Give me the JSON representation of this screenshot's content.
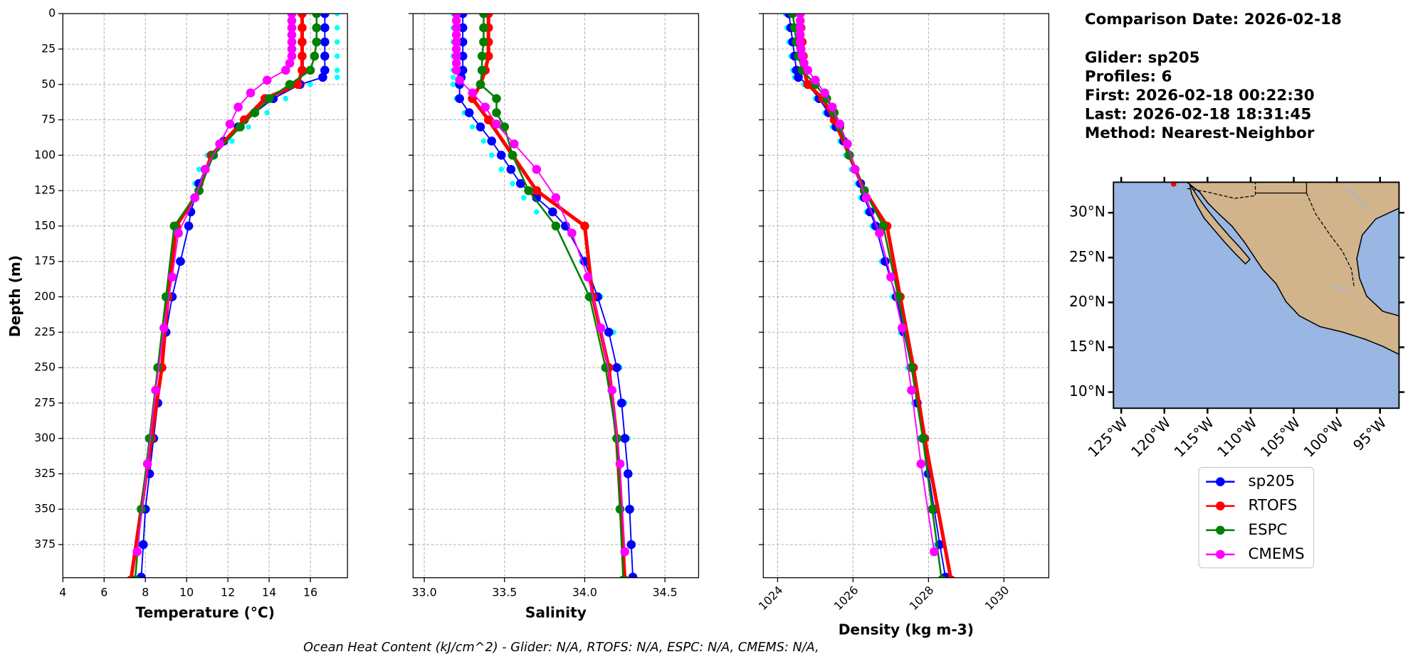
{
  "chart_data": [
    {
      "type": "profile",
      "xlabel": "Temperature (°C)",
      "ylabel": "Depth (m)",
      "xlim": [
        4,
        17.8
      ],
      "xticks": [
        4,
        6,
        8,
        10,
        12,
        14,
        16
      ],
      "ylim": [
        0,
        398.4
      ],
      "y_inverted": true,
      "yticks": [
        0,
        25,
        50,
        75,
        100,
        125,
        150,
        175,
        200,
        225,
        250,
        275,
        300,
        325,
        350,
        375
      ],
      "show_ytick_labels": true,
      "grid": true,
      "series": [
        {
          "color": "#00ffff",
          "linewidth": 0,
          "markersize": 3,
          "y": [
            0,
            10,
            20,
            30,
            40,
            45,
            50,
            60,
            70,
            80,
            90,
            100,
            110,
            120,
            130,
            140,
            150,
            175,
            200,
            225,
            250,
            275,
            300,
            325,
            350,
            375,
            398
          ],
          "x": [
            17.3,
            17.3,
            17.3,
            17.3,
            17.3,
            17.3,
            16.0,
            14.8,
            13.9,
            13.0,
            12.2,
            11.0,
            10.6,
            10.4,
            10.3,
            10.1,
            10.0,
            9.6,
            9.2,
            8.9,
            8.7,
            8.5,
            8.3,
            8.1,
            7.9,
            7.8,
            7.7
          ]
        },
        {
          "name": "sp205",
          "color": "#0000ff",
          "linewidth": 1.5,
          "markersize": 5,
          "y": [
            0,
            10,
            20,
            30,
            40,
            45,
            50,
            60,
            70,
            80,
            90,
            100,
            110,
            120,
            130,
            140,
            150,
            175,
            200,
            225,
            250,
            275,
            300,
            325,
            350,
            375,
            398
          ],
          "x": [
            16.7,
            16.7,
            16.7,
            16.7,
            16.7,
            16.6,
            15.5,
            14.2,
            13.3,
            12.5,
            11.8,
            11.2,
            10.9,
            10.6,
            10.4,
            10.2,
            10.1,
            9.7,
            9.3,
            9.0,
            8.8,
            8.6,
            8.4,
            8.2,
            8.0,
            7.9,
            7.8
          ]
        },
        {
          "name": "RTOFS",
          "color": "#ff0000",
          "linewidth": 4,
          "markersize": 5,
          "y": [
            0,
            10,
            20,
            30,
            40,
            50,
            60,
            75,
            100,
            125,
            150,
            200,
            250,
            300,
            400
          ],
          "x": [
            15.6,
            15.6,
            15.6,
            15.6,
            15.6,
            15.4,
            13.8,
            12.8,
            11.2,
            10.6,
            9.5,
            9.1,
            8.8,
            8.3,
            7.3
          ]
        },
        {
          "name": "ESPC",
          "color": "#008000",
          "linewidth": 2,
          "markersize": 5,
          "y": [
            0,
            10,
            20,
            30,
            40,
            50,
            60,
            70,
            80,
            100,
            125,
            150,
            200,
            250,
            300,
            350,
            400
          ],
          "x": [
            16.3,
            16.3,
            16.3,
            16.2,
            16.0,
            15.0,
            14.0,
            13.3,
            12.6,
            11.3,
            10.6,
            9.4,
            9.0,
            8.6,
            8.2,
            7.8,
            7.5
          ]
        },
        {
          "name": "CMEMS",
          "color": "#ff00ff",
          "linewidth": 1.5,
          "markersize": 5,
          "y": [
            0,
            5,
            10,
            15,
            20,
            25,
            30,
            35,
            40,
            47,
            56,
            66,
            78,
            92,
            110,
            130,
            155,
            186,
            222,
            266,
            318,
            380
          ],
          "x": [
            15.1,
            15.1,
            15.1,
            15.1,
            15.1,
            15.1,
            15.1,
            15.0,
            14.8,
            13.9,
            13.1,
            12.5,
            12.1,
            11.6,
            10.9,
            10.4,
            9.6,
            9.3,
            8.9,
            8.5,
            8.1,
            7.6
          ]
        }
      ]
    },
    {
      "type": "profile",
      "xlabel": "Salinity",
      "xlim": [
        32.93,
        34.71
      ],
      "xticks": [
        {
          "value": 33,
          "label": "33.0"
        },
        33.5,
        {
          "value": 34,
          "label": "34.0"
        },
        34.5
      ],
      "ylim": [
        0,
        398.4
      ],
      "y_inverted": true,
      "yticks": [
        0,
        25,
        50,
        75,
        100,
        125,
        150,
        175,
        200,
        225,
        250,
        275,
        300,
        325,
        350,
        375
      ],
      "show_ytick_labels": false,
      "grid": true,
      "series": [
        {
          "color": "#00ffff",
          "linewidth": 0,
          "markersize": 3,
          "y": [
            0,
            10,
            20,
            30,
            40,
            45,
            50,
            60,
            70,
            80,
            90,
            100,
            110,
            120,
            130,
            140,
            150,
            175,
            200,
            225,
            250,
            275,
            300,
            325,
            350,
            375,
            398
          ],
          "x": [
            33.18,
            33.18,
            33.18,
            33.18,
            33.18,
            33.18,
            33.18,
            33.2,
            33.25,
            33.3,
            33.37,
            33.42,
            33.48,
            33.55,
            33.62,
            33.7,
            33.82,
            33.98,
            34.1,
            34.18,
            34.22,
            34.25,
            34.27,
            34.28,
            34.29,
            34.3,
            34.31
          ]
        },
        {
          "color": "#0000ff",
          "linewidth": 1.5,
          "markersize": 5,
          "y": [
            0,
            10,
            20,
            30,
            40,
            45,
            50,
            60,
            70,
            80,
            90,
            100,
            110,
            120,
            130,
            140,
            150,
            175,
            200,
            225,
            250,
            275,
            300,
            325,
            350,
            375,
            398
          ],
          "x": [
            33.24,
            33.24,
            33.24,
            33.24,
            33.24,
            33.23,
            33.22,
            33.22,
            33.28,
            33.35,
            33.42,
            33.48,
            33.54,
            33.6,
            33.7,
            33.8,
            33.88,
            34.0,
            34.08,
            34.15,
            34.2,
            34.23,
            34.25,
            34.27,
            34.28,
            34.29,
            34.3
          ]
        },
        {
          "color": "#ff0000",
          "linewidth": 4,
          "markersize": 5,
          "y": [
            0,
            10,
            20,
            30,
            40,
            50,
            60,
            75,
            100,
            125,
            150,
            200,
            250,
            300,
            400
          ],
          "x": [
            33.4,
            33.4,
            33.4,
            33.4,
            33.38,
            33.35,
            33.3,
            33.4,
            33.55,
            33.7,
            34.0,
            34.05,
            34.15,
            34.2,
            34.25
          ]
        },
        {
          "color": "#008000",
          "linewidth": 2,
          "markersize": 5,
          "y": [
            0,
            10,
            20,
            30,
            40,
            50,
            60,
            70,
            80,
            100,
            125,
            150,
            200,
            250,
            300,
            350,
            400
          ],
          "x": [
            33.37,
            33.37,
            33.37,
            33.36,
            33.36,
            33.35,
            33.45,
            33.45,
            33.5,
            33.55,
            33.65,
            33.82,
            34.03,
            34.13,
            34.2,
            34.22,
            34.24
          ]
        },
        {
          "color": "#ff00ff",
          "linewidth": 1.5,
          "markersize": 5,
          "y": [
            0,
            5,
            10,
            15,
            20,
            25,
            30,
            35,
            40,
            47,
            56,
            66,
            78,
            92,
            110,
            130,
            155,
            186,
            222,
            266,
            318,
            380
          ],
          "x": [
            33.2,
            33.2,
            33.2,
            33.2,
            33.2,
            33.2,
            33.2,
            33.2,
            33.2,
            33.22,
            33.3,
            33.38,
            33.45,
            33.56,
            33.7,
            33.82,
            33.92,
            34.02,
            34.1,
            34.17,
            34.22,
            34.25
          ]
        }
      ]
    },
    {
      "type": "profile",
      "xlabel": "Density (kg m-3)",
      "xlim": [
        1023.62,
        1031.19
      ],
      "xticks": [
        1024,
        1026,
        1028,
        1030
      ],
      "xtick_rotation": 45,
      "ylim": [
        0,
        398.4
      ],
      "y_inverted": true,
      "yticks": [
        0,
        25,
        50,
        75,
        100,
        125,
        150,
        175,
        200,
        225,
        250,
        275,
        300,
        325,
        350,
        375
      ],
      "show_ytick_labels": false,
      "grid": true,
      "series": [
        {
          "color": "#00ffff",
          "linewidth": 0,
          "markersize": 3,
          "y": [
            0,
            10,
            20,
            30,
            40,
            45,
            50,
            60,
            70,
            80,
            90,
            100,
            110,
            120,
            130,
            140,
            150,
            175,
            200,
            225,
            250,
            275,
            300,
            325,
            350,
            375,
            398
          ],
          "x": [
            1024.2,
            1024.25,
            1024.3,
            1024.35,
            1024.4,
            1024.45,
            1024.7,
            1025.0,
            1025.25,
            1025.45,
            1025.65,
            1025.8,
            1025.95,
            1026.1,
            1026.2,
            1026.35,
            1026.5,
            1026.75,
            1027.05,
            1027.25,
            1027.45,
            1027.6,
            1027.75,
            1027.9,
            1028.05,
            1028.2,
            1028.35
          ]
        },
        {
          "color": "#0000ff",
          "linewidth": 1.5,
          "markersize": 5,
          "y": [
            0,
            10,
            20,
            30,
            40,
            45,
            50,
            60,
            70,
            80,
            90,
            100,
            110,
            120,
            130,
            140,
            150,
            175,
            200,
            225,
            250,
            275,
            300,
            325,
            350,
            375,
            398
          ],
          "x": [
            1024.3,
            1024.35,
            1024.4,
            1024.45,
            1024.5,
            1024.55,
            1024.8,
            1025.1,
            1025.35,
            1025.55,
            1025.75,
            1025.9,
            1026.05,
            1026.2,
            1026.3,
            1026.45,
            1026.6,
            1026.85,
            1027.15,
            1027.35,
            1027.55,
            1027.7,
            1027.85,
            1028.0,
            1028.15,
            1028.3,
            1028.45
          ]
        },
        {
          "color": "#ff0000",
          "linewidth": 4,
          "markersize": 5,
          "y": [
            0,
            10,
            20,
            30,
            40,
            50,
            60,
            75,
            100,
            125,
            150,
            200,
            250,
            300,
            400
          ],
          "x": [
            1024.6,
            1024.62,
            1024.65,
            1024.68,
            1024.7,
            1024.8,
            1025.2,
            1025.5,
            1025.9,
            1026.3,
            1026.9,
            1027.25,
            1027.6,
            1027.9,
            1028.6
          ]
        },
        {
          "color": "#008000",
          "linewidth": 2,
          "markersize": 5,
          "y": [
            0,
            10,
            20,
            30,
            40,
            50,
            60,
            70,
            80,
            100,
            125,
            150,
            200,
            250,
            300,
            350,
            400
          ],
          "x": [
            1024.4,
            1024.45,
            1024.5,
            1024.55,
            1024.65,
            1025.0,
            1025.3,
            1025.5,
            1025.65,
            1025.9,
            1026.3,
            1026.8,
            1027.2,
            1027.55,
            1027.85,
            1028.1,
            1028.35
          ]
        },
        {
          "color": "#ff00ff",
          "linewidth": 1.5,
          "markersize": 5,
          "y": [
            0,
            5,
            10,
            15,
            20,
            25,
            30,
            35,
            40,
            47,
            56,
            66,
            78,
            92,
            110,
            130,
            155,
            186,
            222,
            266,
            318,
            380
          ],
          "x": [
            1024.6,
            1024.6,
            1024.6,
            1024.6,
            1024.6,
            1024.62,
            1024.65,
            1024.7,
            1024.8,
            1025.0,
            1025.25,
            1025.45,
            1025.65,
            1025.85,
            1026.05,
            1026.35,
            1026.7,
            1027.0,
            1027.3,
            1027.55,
            1027.8,
            1028.15
          ]
        }
      ]
    },
    {
      "type": "map",
      "land_color": "#d2b48c",
      "ocean_color": "#9ab6e2",
      "xlim": [
        -125.9,
        -92.8
      ],
      "xticks": [
        {
          "value": -125,
          "label": "125°W"
        },
        {
          "value": -120,
          "label": "120°W"
        },
        {
          "value": -115,
          "label": "115°W"
        },
        {
          "value": -110,
          "label": "110°W"
        },
        {
          "value": -105,
          "label": "105°W"
        },
        {
          "value": -100,
          "label": "100°W"
        },
        {
          "value": -95,
          "label": "95°W"
        }
      ],
      "ylim": [
        8.2,
        33.4
      ],
      "yticks": [
        {
          "value": 10,
          "label": "10°N"
        },
        {
          "value": 15,
          "label": "15°N"
        },
        {
          "value": 20,
          "label": "20°N"
        },
        {
          "value": 25,
          "label": "25°N"
        },
        {
          "value": 30,
          "label": "30°N"
        }
      ]
    }
  ],
  "info": {
    "date": "Comparison Date: 2026-02-18",
    "lines": [
      "Glider: sp205",
      "Profiles: 6",
      "First: 2026-02-18 00:22:30",
      "Last: 2026-02-18 18:31:45",
      "Method: Nearest-Neighbor"
    ]
  },
  "footnote": "Ocean Heat Content (kJ/cm^2) - Glider: N/A,  RTOFS: N/A,  ESPC: N/A,  CMEMS: N/A,"
}
